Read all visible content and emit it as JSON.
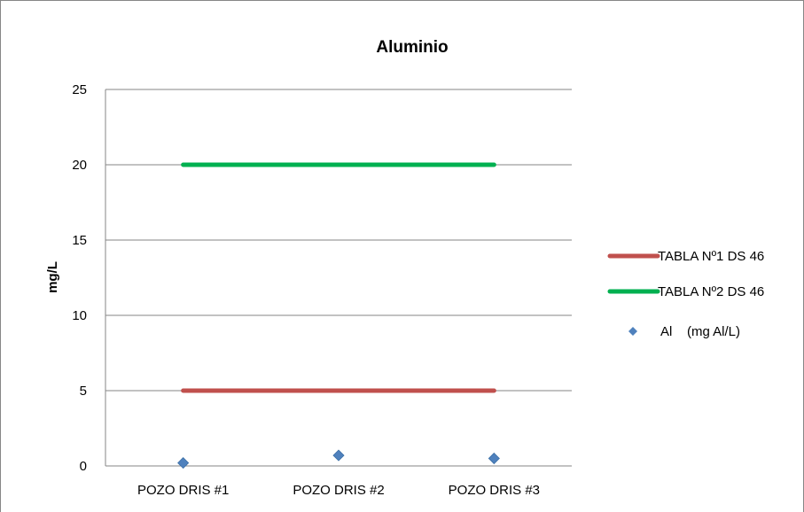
{
  "chart_data": {
    "type": "line",
    "title": "Aluminio",
    "xlabel": "",
    "ylabel": "mg/L",
    "categories": [
      "POZO DRIS #1",
      "POZO DRIS #2",
      "POZO DRIS #3"
    ],
    "ylim": [
      0,
      25
    ],
    "yticks": [
      0,
      5,
      10,
      15,
      20,
      25
    ],
    "grid": true,
    "legend_position": "right",
    "series": [
      {
        "name": "TABLA Nº1 DS 46",
        "kind": "line",
        "color": "#C0504D",
        "values": [
          5,
          5,
          5
        ]
      },
      {
        "name": "TABLA Nº2 DS 46",
        "kind": "line",
        "color": "#00B050",
        "values": [
          20,
          20,
          20
        ]
      },
      {
        "name": "Al    (mg Al/L)",
        "kind": "scatter",
        "marker": "diamond",
        "color": "#4F81BD",
        "values": [
          0.2,
          0.7,
          0.5
        ]
      }
    ]
  }
}
